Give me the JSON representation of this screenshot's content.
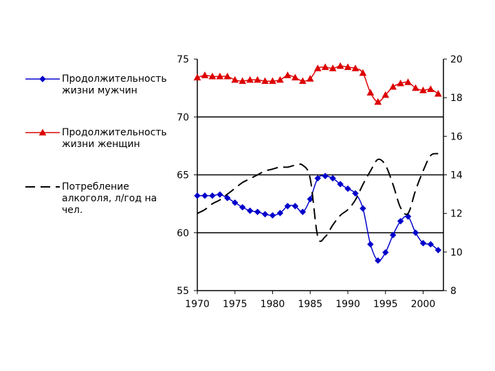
{
  "chart_data": {
    "type": "line",
    "x": [
      1970,
      1971,
      1972,
      1973,
      1974,
      1975,
      1976,
      1977,
      1978,
      1979,
      1980,
      1981,
      1982,
      1983,
      1984,
      1985,
      1986,
      1987,
      1988,
      1989,
      1990,
      1991,
      1992,
      1993,
      1994,
      1995,
      1996,
      1997,
      1998,
      1999,
      2000,
      2001,
      2002
    ],
    "xlim": [
      1970,
      2002.7
    ],
    "x_ticks": [
      "1970",
      "1975",
      "1980",
      "1985",
      "1990",
      "1995",
      "2000"
    ],
    "y_left": {
      "lim": [
        55,
        75
      ],
      "ticks": [
        "55",
        "60",
        "65",
        "70",
        "75"
      ],
      "gridlines": [
        60,
        65,
        70
      ]
    },
    "y_right": {
      "lim": [
        8,
        20
      ],
      "ticks": [
        "8",
        "10",
        "12",
        "14",
        "16",
        "18",
        "20"
      ]
    },
    "series": [
      {
        "name": "Продолжительность жизни мужчин",
        "axis": "left",
        "color": "#0000cc",
        "marker": "diamond",
        "line": "solid",
        "values": [
          63.2,
          63.2,
          63.2,
          63.3,
          63.0,
          62.6,
          62.2,
          61.9,
          61.8,
          61.6,
          61.5,
          61.7,
          62.3,
          62.3,
          61.8,
          62.9,
          64.7,
          64.9,
          64.7,
          64.2,
          63.8,
          63.4,
          62.1,
          59.0,
          57.6,
          58.3,
          59.8,
          61.0,
          61.4,
          60.0,
          59.1,
          59.0,
          58.5
        ]
      },
      {
        "name": "Продолжительность жизни женщин",
        "axis": "left",
        "color": "#dd0000",
        "marker": "triangle",
        "line": "solid",
        "values": [
          73.4,
          73.6,
          73.5,
          73.5,
          73.5,
          73.2,
          73.1,
          73.2,
          73.2,
          73.1,
          73.1,
          73.2,
          73.6,
          73.4,
          73.1,
          73.3,
          74.2,
          74.3,
          74.2,
          74.4,
          74.3,
          74.2,
          73.8,
          72.1,
          71.3,
          71.9,
          72.6,
          72.9,
          73.0,
          72.5,
          72.3,
          72.4,
          72.0
        ]
      },
      {
        "name": "Потребление алкоголя, л/год на чел.",
        "axis": "right",
        "color": "#000000",
        "marker": "none",
        "line": "dashed",
        "values": [
          12.0,
          12.2,
          12.5,
          12.7,
          13.0,
          13.3,
          13.6,
          13.8,
          14.0,
          14.2,
          14.3,
          14.4,
          14.4,
          14.5,
          14.5,
          13.8,
          10.8,
          10.8,
          11.4,
          11.9,
          12.2,
          12.7,
          13.5,
          14.2,
          14.8,
          14.5,
          13.5,
          12.3,
          12.0,
          13.2,
          14.2,
          15.0,
          15.1
        ]
      }
    ],
    "legend_position": "left"
  }
}
